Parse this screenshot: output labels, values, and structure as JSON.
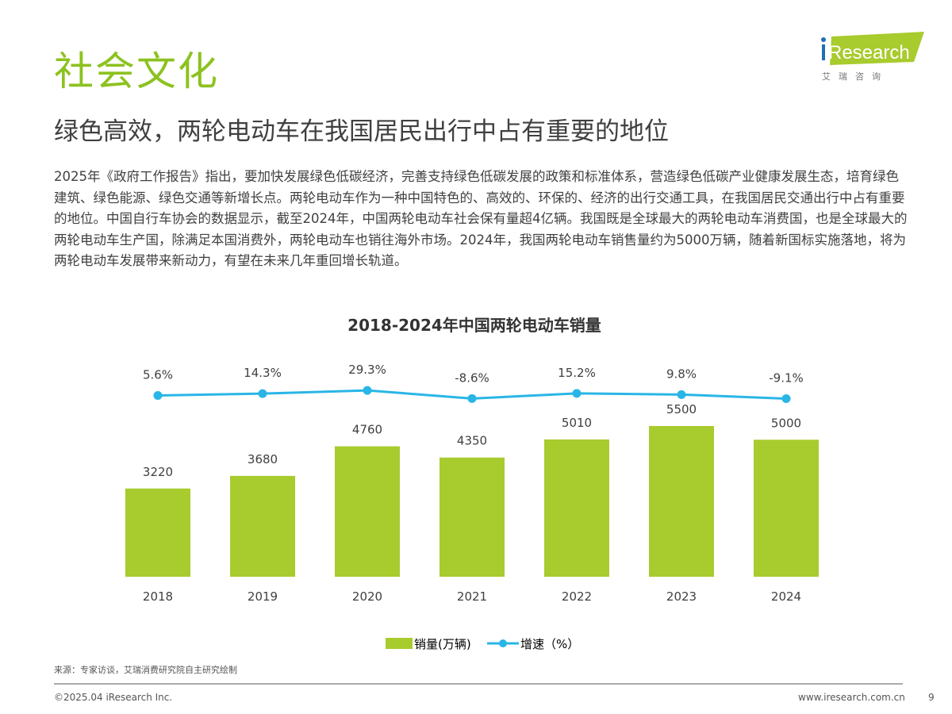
{
  "slide": {
    "section_title": "社会文化",
    "headline": "绿色高效，两轮电动车在我国居民出行中占有重要的地位",
    "body": "2025年《政府工作报告》指出，要加快发展绿色低碳经济，完善支持绿色低碳发展的政策和标准体系，营造绿色低碳产业健康发展生态，培育绿色建筑、绿色能源、绿色交通等新增长点。两轮电动车作为一种中国特色的、高效的、环保的、经济的出行交通工具，在我国居民交通出行中占有重要的地位。中国自行车协会的数据显示，截至2024年，中国两轮电动车社会保有量超4亿辆。我国既是全球最大的两轮电动车消费国，也是全球最大的两轮电动车生产国，除满足本国消费外，两轮电动车也销往海外市场。2024年，我国两轮电动车销售量约为5000万辆，随着新国标实施落地，将为两轮电动车发展带来新动力，有望在未来几年重回增长轨道。",
    "source": "来源：专家访谈，艾瑞消费研究院自主研究绘制",
    "copyright": "©2025.04 iResearch Inc.",
    "website": "www.iresearch.com.cn",
    "page_number": "9"
  },
  "logo": {
    "brand": "iResearch",
    "subtitle": "艾 瑞 咨 询"
  },
  "colors": {
    "accent": "#8cc21f",
    "bar": "#a8cb2e",
    "line": "#29b6e6"
  },
  "chart_data": {
    "type": "bar+line",
    "title": "2018-2024年中国两轮电动车销量",
    "categories": [
      "2018",
      "2019",
      "2020",
      "2021",
      "2022",
      "2023",
      "2024"
    ],
    "series": [
      {
        "name": "销量(万辆)",
        "type": "bar",
        "values": [
          3220,
          3680,
          4760,
          4350,
          5010,
          5500,
          5000
        ],
        "labels": [
          "3220",
          "3680",
          "4760",
          "4350",
          "5010",
          "5500",
          "5000"
        ]
      },
      {
        "name": "增速（%）",
        "type": "line",
        "values": [
          5.6,
          14.3,
          29.3,
          -8.6,
          15.2,
          9.8,
          -9.1
        ],
        "labels": [
          "5.6%",
          "14.3%",
          "29.3%",
          "-8.6%",
          "15.2%",
          "9.8%",
          "-9.1%"
        ]
      }
    ],
    "legend_position": "bottom",
    "grid": false
  }
}
